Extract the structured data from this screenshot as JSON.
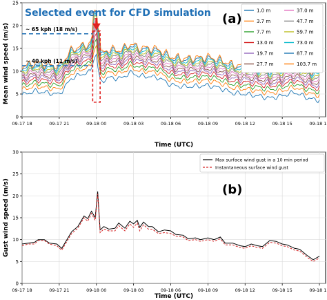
{
  "chart_data": [
    {
      "panel_label": "(a)",
      "type": "line",
      "title": "Selected event for CFD simulation",
      "xlabel": "Time (UTC)",
      "ylabel": "Mean wind speed (m/s)",
      "xlim": [
        0,
        24.5
      ],
      "ylim": [
        0,
        25
      ],
      "x_ticks": [
        0,
        3,
        6,
        9,
        12,
        15,
        18,
        21,
        24
      ],
      "x_tick_labels": [
        "09-17 18",
        "09-17 21",
        "09-18 00",
        "09-18 03",
        "09-18 06",
        "09-18 09",
        "09-18 12",
        "09-18 15",
        "09-18 18"
      ],
      "y_ticks": [
        0,
        5,
        10,
        15,
        20,
        25
      ],
      "y_tick_labels": [
        "0",
        "5",
        "10",
        "15",
        "20",
        "25"
      ],
      "grid": true,
      "legend_position": "top-right",
      "legend_columns": 2,
      "annotations": [
        {
          "text": "~ 65 kph (18 m/s)",
          "y": 18.2
        },
        {
          "text": "~ 40 kph (11 m/s)",
          "y": 11.2
        }
      ],
      "highlight_x_range": [
        5.7,
        6.3
      ],
      "arrow_x": 6.0,
      "base_curve": {
        "x": [
          0,
          1,
          2,
          3,
          4,
          5,
          5.5,
          5.8,
          6,
          6.1,
          6.3,
          7,
          8,
          8.7,
          9,
          9.5,
          10,
          11,
          12,
          13,
          14,
          15,
          16,
          17,
          18,
          19,
          20,
          21,
          22,
          23,
          23.8,
          24
        ],
        "y": [
          4.8,
          5.6,
          5.3,
          4.9,
          8.5,
          9.5,
          9.8,
          12.8,
          13.8,
          11.2,
          7.6,
          8.6,
          8.4,
          9.7,
          9.5,
          8.9,
          8.9,
          8.6,
          7.0,
          6.6,
          6.7,
          6.9,
          6.3,
          5.2,
          5.0,
          4.6,
          4.1,
          4.6,
          5.4,
          4.2,
          3.6,
          3.9
        ]
      },
      "series": [
        {
          "name": "1.0 m",
          "offset": 0.0,
          "color": "#1f77b4"
        },
        {
          "name": "3.7 m",
          "offset": 1.1,
          "color": "#ff7f0e"
        },
        {
          "name": "7.7 m",
          "offset": 1.9,
          "color": "#2ca02c"
        },
        {
          "name": "13.0 m",
          "offset": 2.6,
          "color": "#d62728"
        },
        {
          "name": "19.7 m",
          "offset": 3.2,
          "color": "#9467bd"
        },
        {
          "name": "27.7 m",
          "offset": 3.7,
          "color": "#8c564b"
        },
        {
          "name": "37.0 m",
          "offset": 4.2,
          "color": "#e377c2"
        },
        {
          "name": "47.7 m",
          "offset": 4.7,
          "color": "#7f7f7f"
        },
        {
          "name": "59.7 m",
          "offset": 5.1,
          "color": "#bcbd22"
        },
        {
          "name": "73.0 m",
          "offset": 5.5,
          "color": "#17becf"
        },
        {
          "name": "87.7 m",
          "offset": 5.9,
          "color": "#1f77b4"
        },
        {
          "name": "103.7 m",
          "offset": 6.2,
          "color": "#ff7f0e"
        }
      ]
    },
    {
      "panel_label": "(b)",
      "type": "line",
      "xlabel": "Time (UTC)",
      "ylabel": "Gust wind speed (m/s)",
      "xlim": [
        0,
        24.5
      ],
      "ylim": [
        0,
        30
      ],
      "x_ticks": [
        0,
        3,
        6,
        9,
        12,
        15,
        18,
        21,
        24
      ],
      "x_tick_labels": [
        "09-17 18",
        "09-17 21",
        "09-18 00",
        "09-18 03",
        "09-18 06",
        "09-18 09",
        "09-18 12",
        "09-18 15",
        "09-18 18"
      ],
      "y_ticks": [
        0,
        5,
        10,
        15,
        20,
        25,
        30
      ],
      "y_tick_labels": [
        "0",
        "5",
        "10",
        "15",
        "20",
        "25",
        "30"
      ],
      "grid": true,
      "legend_position": "top-right",
      "series": [
        {
          "name": "Max surface wind gust in a 10 min period",
          "color": "#000000",
          "style": "solid",
          "x": [
            0,
            0.5,
            1,
            1.3,
            1.8,
            2.2,
            2.8,
            3.2,
            4,
            4.5,
            5,
            5.3,
            5.6,
            5.9,
            6.1,
            6.3,
            6.6,
            7,
            7.5,
            7.8,
            8.3,
            8.7,
            9,
            9.3,
            9.5,
            9.8,
            10.2,
            10.5,
            11,
            11.5,
            12,
            12.4,
            13,
            13.4,
            14,
            14.4,
            15,
            15.5,
            16,
            16.4,
            17,
            17.6,
            18,
            18.5,
            19,
            19.4,
            20,
            20.5,
            21,
            21.4,
            22,
            22.4,
            23,
            23.5,
            24
          ],
          "y": [
            9.0,
            9.2,
            9.4,
            10.0,
            10.0,
            9.2,
            9.0,
            8.0,
            11.8,
            13.0,
            15.4,
            14.8,
            16.5,
            15.0,
            21.0,
            12.2,
            13.0,
            12.4,
            12.6,
            13.8,
            12.6,
            14.2,
            13.6,
            14.4,
            12.8,
            14.0,
            13.0,
            13.0,
            11.8,
            12.2,
            12.0,
            11.2,
            11.0,
            10.2,
            10.4,
            10.0,
            10.4,
            10.0,
            10.6,
            9.2,
            9.2,
            8.6,
            8.4,
            9.0,
            8.6,
            8.4,
            9.8,
            9.6,
            9.0,
            8.8,
            8.0,
            7.8,
            6.4,
            5.4,
            6.2
          ]
        },
        {
          "name": "Instantaneous surface wind gust",
          "color": "#d62728",
          "style": "dashed",
          "x": [
            0,
            0.5,
            1,
            1.3,
            1.8,
            2.2,
            2.8,
            3.2,
            4,
            4.5,
            5,
            5.3,
            5.6,
            5.9,
            6.1,
            6.3,
            6.6,
            7,
            7.5,
            7.8,
            8.3,
            8.7,
            9,
            9.3,
            9.5,
            9.8,
            10.2,
            10.5,
            11,
            11.5,
            12,
            12.4,
            13,
            13.4,
            14,
            14.4,
            15,
            15.5,
            16,
            16.4,
            17,
            17.6,
            18,
            18.5,
            19,
            19.4,
            20,
            20.5,
            21,
            21.4,
            22,
            22.4,
            23,
            23.5,
            24
          ],
          "y": [
            8.6,
            9.0,
            9.0,
            9.8,
            9.8,
            9.0,
            8.6,
            7.6,
            11.4,
            12.6,
            15.0,
            14.2,
            16.0,
            14.4,
            20.4,
            11.6,
            12.4,
            12.0,
            12.0,
            13.2,
            12.0,
            13.6,
            12.8,
            13.8,
            12.0,
            13.4,
            12.4,
            12.4,
            11.4,
            11.6,
            11.4,
            10.8,
            10.6,
            9.8,
            10.0,
            9.6,
            10.0,
            9.6,
            10.2,
            8.8,
            8.8,
            8.2,
            8.0,
            8.6,
            8.2,
            8.0,
            9.4,
            9.2,
            8.6,
            8.4,
            7.6,
            7.4,
            6.0,
            5.0,
            5.8
          ]
        }
      ]
    }
  ]
}
